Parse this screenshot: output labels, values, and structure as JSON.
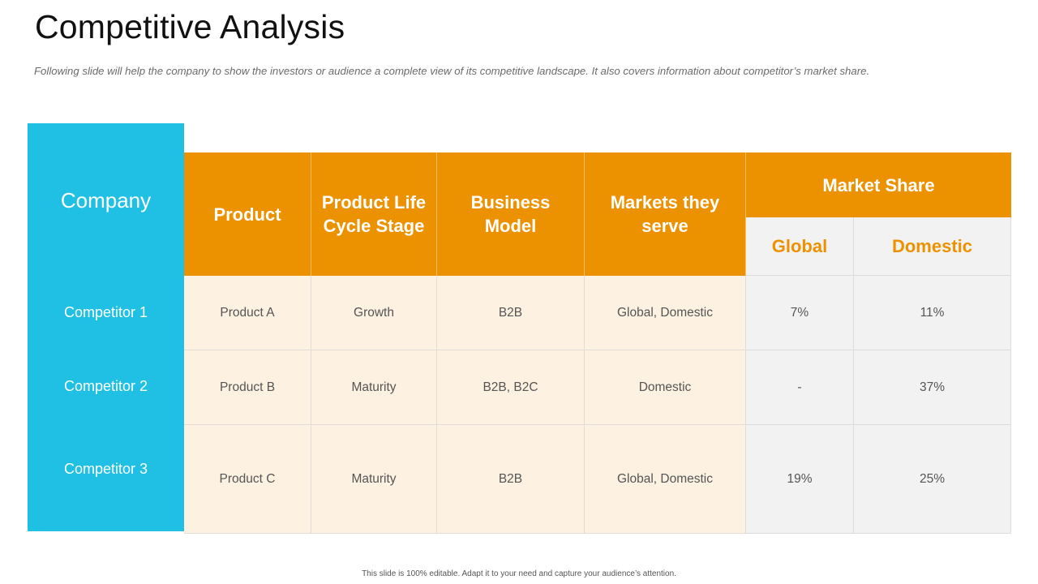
{
  "slide": {
    "title": "Competitive Analysis",
    "subtitle": "Following  slide will help the company to show the investors or audience a complete view of its competitive landscape. It also covers information about competitor’s market share.",
    "footer": "This slide is 100% editable.  Adapt it to your need and capture your audience’s attention."
  },
  "table": {
    "company_header": "Company",
    "headers": {
      "product": "Product",
      "lifecycle": "Product Life Cycle Stage",
      "business_model": "Business Model",
      "markets": "Markets they serve",
      "market_share": "Market Share",
      "global": "Global",
      "domestic": "Domestic"
    },
    "rows": [
      {
        "company": "Competitor 1",
        "product": "Product A",
        "lifecycle": "Growth",
        "business_model": "B2B",
        "markets": "Global, Domestic",
        "global": "7%",
        "domestic": "11%"
      },
      {
        "company": "Competitor 2",
        "product": "Product B",
        "lifecycle": "Maturity",
        "business_model": "B2B, B2C",
        "markets": "Domestic",
        "global": "-",
        "domestic": "37%"
      },
      {
        "company": "Competitor 3",
        "product": "Product C",
        "lifecycle": "Maturity",
        "business_model": "B2B",
        "markets": "Global, Domestic",
        "global": "19%",
        "domestic": "25%"
      }
    ]
  },
  "colors": {
    "accent_orange": "#ec9200",
    "accent_cyan": "#1fc0e3",
    "cream": "#fdf1e1",
    "grey": "#f2f2f2"
  }
}
